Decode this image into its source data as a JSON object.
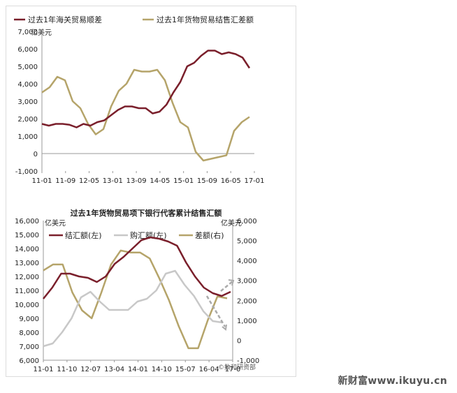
{
  "chart_data": [
    {
      "type": "line",
      "title": "",
      "unit_label": "亿美元",
      "ylim": [
        -1000,
        7000
      ],
      "yticks": [
        "7,000",
        "6,000",
        "5,000",
        "4,000",
        "3,000",
        "2,000",
        "1,000",
        "0",
        "-1,000"
      ],
      "xticks": [
        "11-01",
        "11-09",
        "12-05",
        "13-01",
        "13-09",
        "14-05",
        "15-01",
        "15-09",
        "16-05",
        "17-01"
      ],
      "series": [
        {
          "name": "过去1年海关贸易顺差",
          "color": "#7a1f2b",
          "values": [
            1700,
            1600,
            1700,
            1700,
            1650,
            1500,
            1700,
            1600,
            1800,
            1900,
            2200,
            2500,
            2700,
            2700,
            2600,
            2600,
            2300,
            2400,
            2800,
            3500,
            4100,
            5000,
            5200,
            5600,
            5900,
            5900,
            5700,
            5800,
            5700,
            5500,
            4900
          ]
        },
        {
          "name": "过去1年货物贸易结售汇差额",
          "color": "#b5a46a",
          "values": [
            3500,
            3800,
            4400,
            4200,
            3000,
            2600,
            1700,
            1100,
            1400,
            2700,
            3600,
            4000,
            4800,
            4700,
            4700,
            4800,
            4200,
            2900,
            1800,
            1500,
            100,
            -400,
            -300,
            -200,
            -100,
            1300,
            1800,
            2100
          ]
        }
      ]
    },
    {
      "type": "line",
      "title": "过去1年货物贸易项下银行代客累计结售汇额",
      "unit_left": "亿美元",
      "unit_right": "亿美元",
      "ylim_left": [
        6000,
        16000
      ],
      "ylim_right": [
        -1000,
        6000
      ],
      "yticks_left": [
        "16,000",
        "15,000",
        "14,000",
        "13,000",
        "12,000",
        "11,000",
        "10,000",
        "9,000",
        "8,000",
        "7,000",
        "6,000"
      ],
      "yticks_right": [
        "6,000",
        "5,000",
        "4,000",
        "3,000",
        "2,000",
        "1,000",
        "0",
        "-1,000"
      ],
      "xticks": [
        "11-01",
        "11-10",
        "12-07",
        "13-04",
        "14-01",
        "14-10",
        "15-07",
        "16-04",
        "17-0"
      ],
      "series": [
        {
          "name": "结汇额(左)",
          "color": "#7a1f2b",
          "axis": "left",
          "values": [
            10400,
            11200,
            12200,
            12200,
            12000,
            11900,
            11600,
            12000,
            12900,
            13400,
            14000,
            14600,
            14800,
            14700,
            14500,
            14200,
            13000,
            12000,
            11200,
            10800,
            10600,
            10900
          ]
        },
        {
          "name": "购汇额(左)",
          "color": "#c8c8c8",
          "axis": "left",
          "values": [
            7000,
            7200,
            8000,
            9000,
            10500,
            10900,
            10200,
            9600,
            9600,
            9600,
            10200,
            10400,
            11000,
            12200,
            12400,
            11400,
            10600,
            9500,
            8800,
            8700
          ]
        },
        {
          "name": "差额(右)",
          "color": "#b5a46a",
          "axis": "right",
          "values": [
            3500,
            3800,
            3800,
            2400,
            1500,
            1100,
            2400,
            3800,
            4500,
            4400,
            4400,
            4100,
            3100,
            2000,
            700,
            -400,
            -400,
            1000,
            2200,
            2100
          ]
        }
      ]
    }
  ],
  "watermark": "新财富www.ikuyu.cn",
  "watermark_small": "©数和研资部"
}
